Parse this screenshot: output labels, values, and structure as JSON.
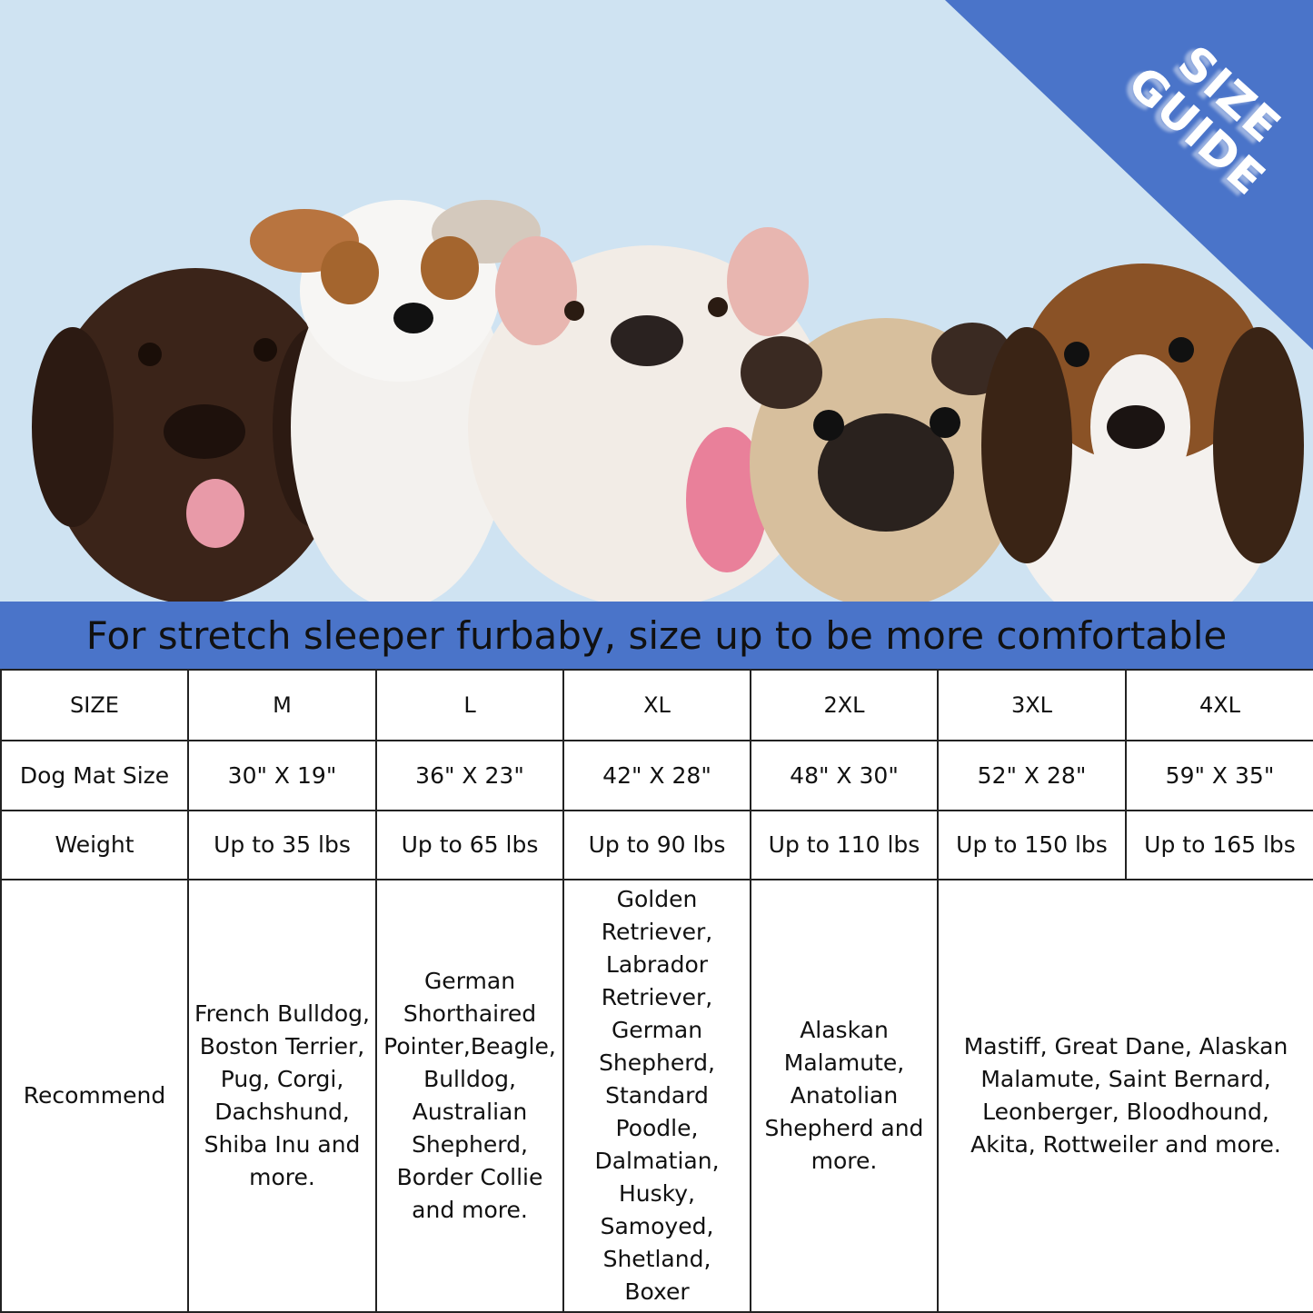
{
  "badge": {
    "line1": "SIZE",
    "line2": "GUIDE"
  },
  "colors": {
    "accent_blue": "#4a74c9",
    "sky": "#cfe3f2"
  },
  "banner": "For stretch sleeper furbaby, size up to be more comfortable",
  "table": {
    "headers": [
      "SIZE",
      "M",
      "L",
      "XL",
      "2XL",
      "3XL",
      "4XL"
    ],
    "mat_size": {
      "label": "Dog Mat Size",
      "values": [
        "30\" X 19\"",
        "36\" X 23\"",
        "42\" X 28\"",
        "48\" X 30\"",
        "52\" X 28\"",
        "59\" X 35\""
      ]
    },
    "weight": {
      "label": "Weight",
      "values": [
        "Up to 35 lbs",
        "Up to 65 lbs",
        "Up to 90 lbs",
        "Up to 110 lbs",
        "Up to 150 lbs",
        "Up to 165 lbs"
      ]
    },
    "recommend": {
      "label": "Recommend",
      "values": [
        "French Bulldog, Boston Terrier, Pug, Corgi, Dachshund, Shiba Inu and more.",
        "German Shorthaired Pointer,Beagle, Bulldog, Australian Shepherd, Border Collie and more.",
        "Golden Retriever, Labrador Retriever, German Shepherd, Standard Poodle, Dalmatian, Husky, Samoyed, Shetland, Boxer",
        "Alaskan Malamute, Anatolian Shepherd and more.",
        "Mastiff, Great Dane, Alaskan Malamute, Saint Bernard, Leonberger, Bloodhound, Akita, Rottweiler and more."
      ]
    }
  }
}
